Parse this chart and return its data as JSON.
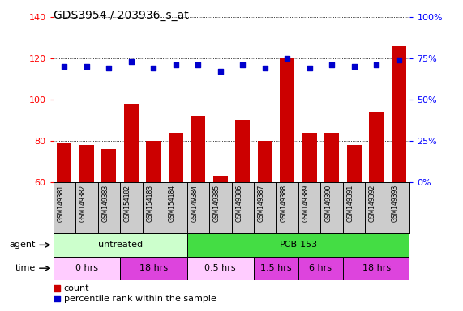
{
  "title": "GDS3954 / 203936_s_at",
  "samples": [
    "GSM149381",
    "GSM149382",
    "GSM149383",
    "GSM154182",
    "GSM154183",
    "GSM154184",
    "GSM149384",
    "GSM149385",
    "GSM149386",
    "GSM149387",
    "GSM149388",
    "GSM149389",
    "GSM149390",
    "GSM149391",
    "GSM149392",
    "GSM149393"
  ],
  "count_values": [
    79,
    78,
    76,
    98,
    80,
    84,
    92,
    63,
    90,
    80,
    120,
    84,
    84,
    78,
    94,
    126
  ],
  "percentile_values": [
    70,
    70,
    69,
    73,
    69,
    71,
    71,
    67,
    71,
    69,
    75,
    69,
    71,
    70,
    71,
    74
  ],
  "ylim_left": [
    60,
    140
  ],
  "ylim_right": [
    0,
    100
  ],
  "yticks_left": [
    60,
    80,
    100,
    120,
    140
  ],
  "yticks_right": [
    0,
    25,
    50,
    75,
    100
  ],
  "bar_color": "#cc0000",
  "dot_color": "#0000cc",
  "agent_groups": [
    {
      "label": "untreated",
      "start": 0,
      "end": 6,
      "color": "#ccffcc"
    },
    {
      "label": "PCB-153",
      "start": 6,
      "end": 16,
      "color": "#44dd44"
    }
  ],
  "time_groups": [
    {
      "label": "0 hrs",
      "start": 0,
      "end": 3,
      "color": "#ffccff"
    },
    {
      "label": "18 hrs",
      "start": 3,
      "end": 6,
      "color": "#dd44dd"
    },
    {
      "label": "0.5 hrs",
      "start": 6,
      "end": 9,
      "color": "#ffccff"
    },
    {
      "label": "1.5 hrs",
      "start": 9,
      "end": 11,
      "color": "#dd44dd"
    },
    {
      "label": "6 hrs",
      "start": 11,
      "end": 13,
      "color": "#dd44dd"
    },
    {
      "label": "18 hrs",
      "start": 13,
      "end": 16,
      "color": "#dd44dd"
    }
  ],
  "legend_count_color": "#cc0000",
  "legend_dot_color": "#0000cc"
}
